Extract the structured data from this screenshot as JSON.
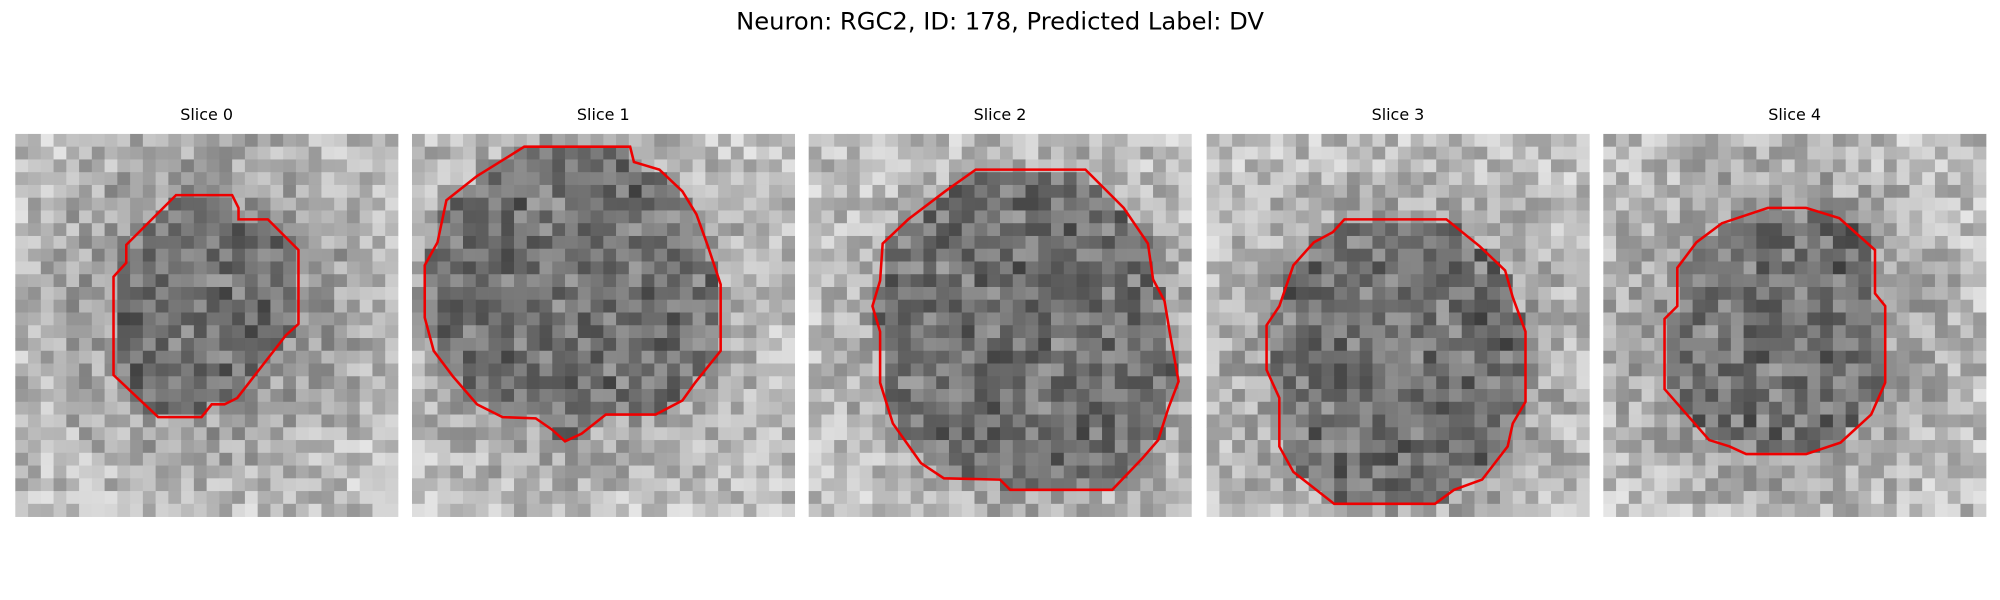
{
  "title": "Neuron: RGC2, ID: 178, Predicted Label: DV",
  "panels": [
    {
      "title": "Slice 0"
    },
    {
      "title": "Slice 1"
    },
    {
      "title": "Slice 2"
    },
    {
      "title": "Slice 3"
    },
    {
      "title": "Slice 4"
    }
  ]
}
